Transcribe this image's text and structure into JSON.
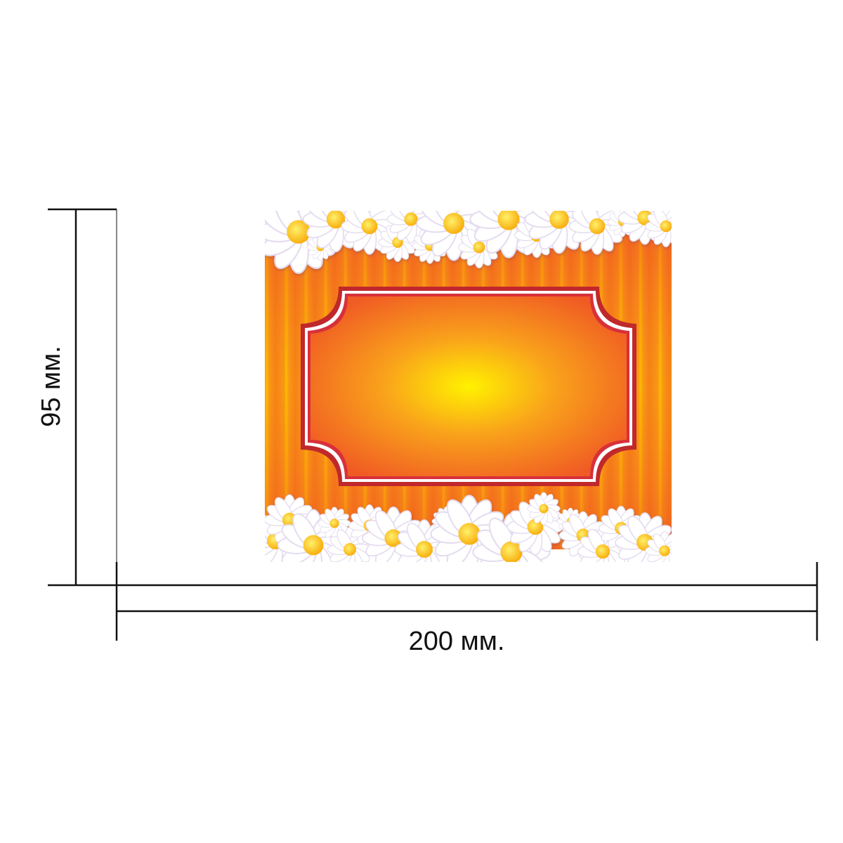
{
  "dimensions": {
    "height_label": "95 мм.",
    "width_label": "200 мм."
  },
  "colors": {
    "stripe_orange": "#f26a1b",
    "stripe_yellow": "#ffb000",
    "frame_red": "#c0282c",
    "frame_white": "#ffffff",
    "center_yellow": "#fff200",
    "daisy_petal": "#ffffff",
    "daisy_center": "#ffb400",
    "dimension_line": "#111111"
  },
  "icons": {
    "decoration": "daisy-flower-icon"
  }
}
